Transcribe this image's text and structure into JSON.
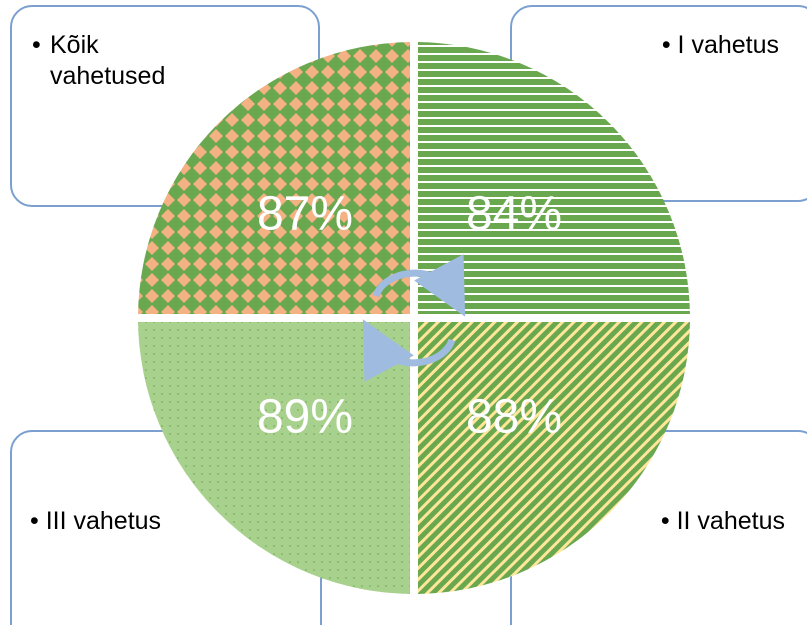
{
  "nodes": [
    {
      "label": "Kõik vahetused",
      "value": "87%"
    },
    {
      "label": "I vahetus",
      "value": "84%"
    },
    {
      "label": "III vahetus",
      "value": "89%"
    },
    {
      "label": "II vahetus",
      "value": "88%"
    }
  ]
}
